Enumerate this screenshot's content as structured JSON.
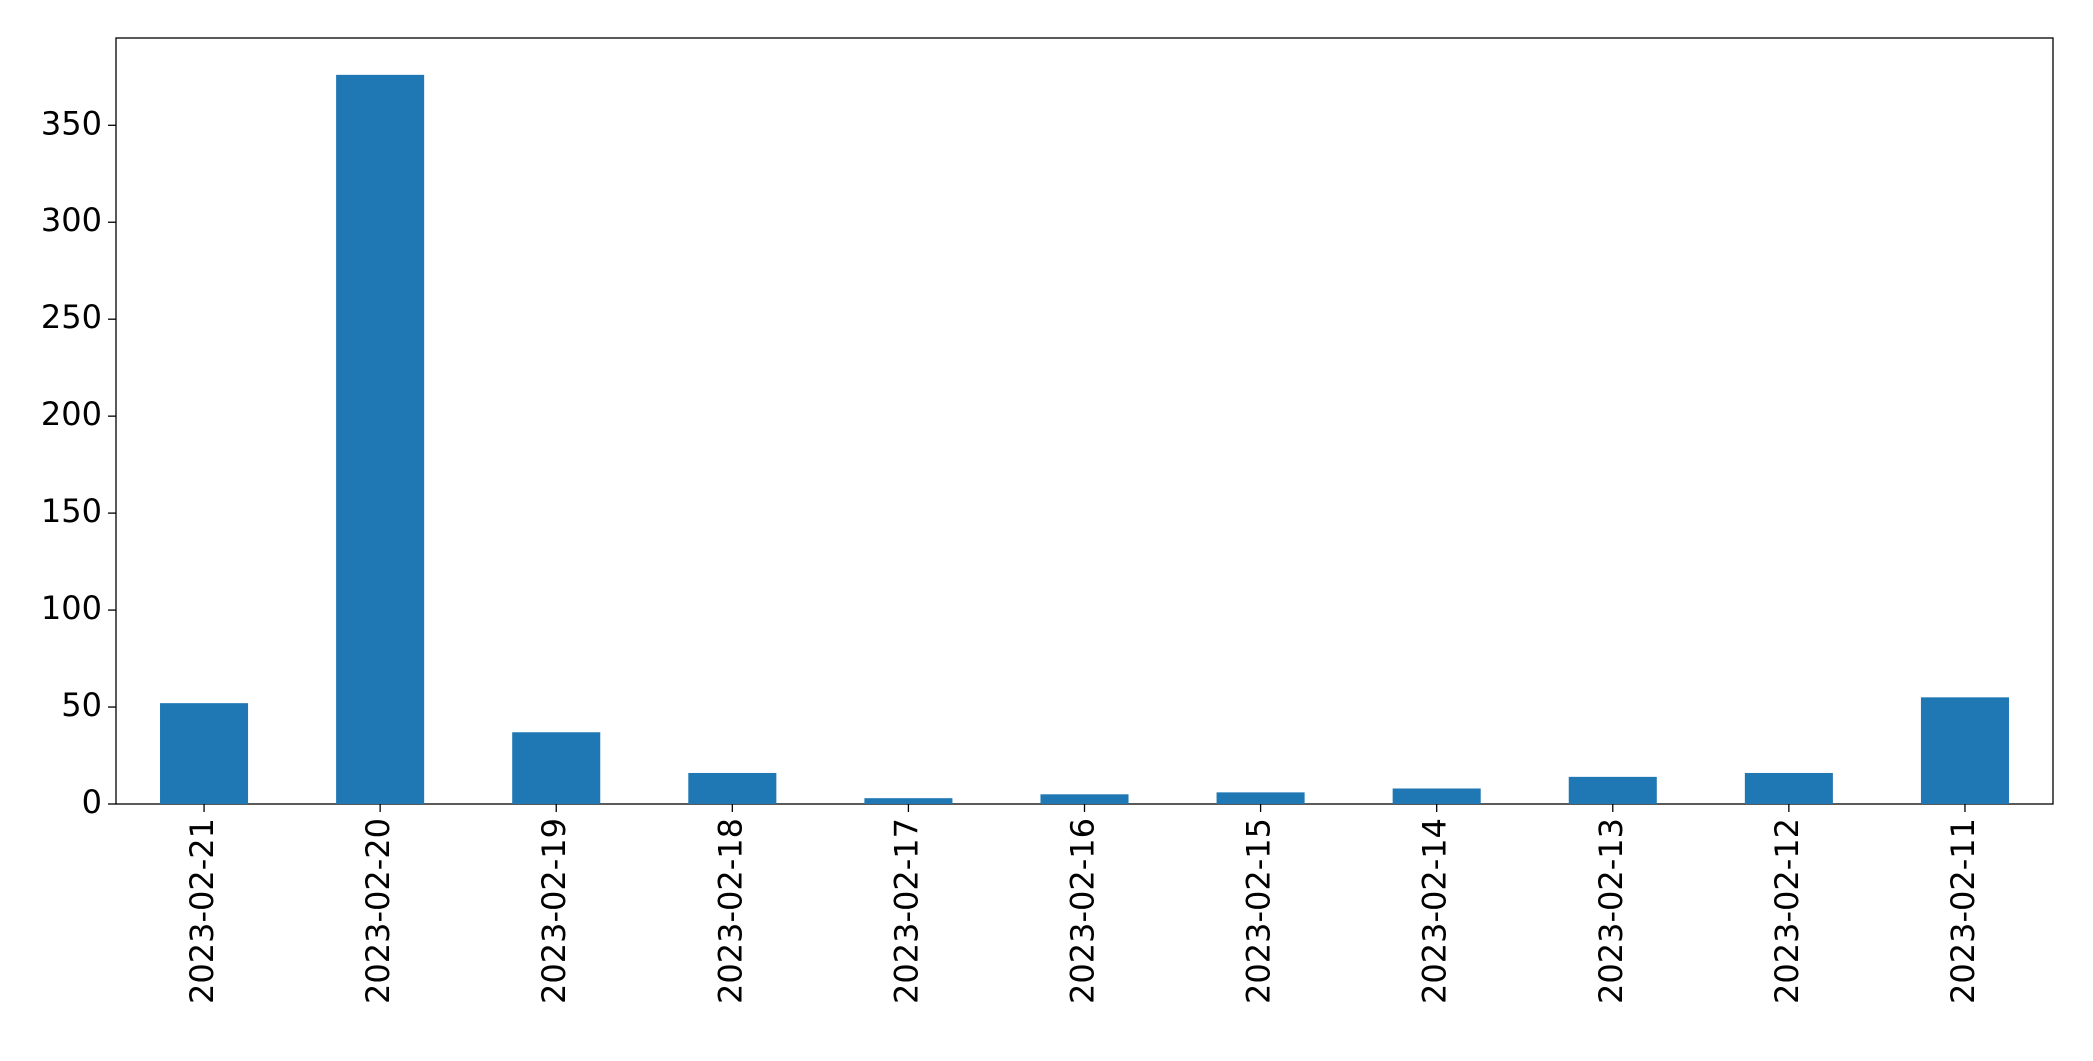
{
  "chart_data": {
    "type": "bar",
    "categories": [
      "2023-02-21",
      "2023-02-20",
      "2023-02-19",
      "2023-02-18",
      "2023-02-17",
      "2023-02-16",
      "2023-02-15",
      "2023-02-14",
      "2023-02-13",
      "2023-02-12",
      "2023-02-11"
    ],
    "values": [
      52,
      376,
      37,
      16,
      3,
      5,
      6,
      8,
      14,
      16,
      55
    ],
    "color": "#1f77b4",
    "ylim": [
      0,
      395
    ],
    "yticks": [
      0,
      50,
      100,
      150,
      200,
      250,
      300,
      350
    ],
    "grid": false
  }
}
